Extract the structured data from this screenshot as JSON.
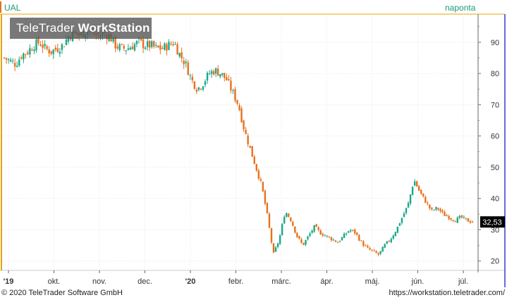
{
  "header": {
    "ticker": "UAL",
    "period": "naponta"
  },
  "watermark": {
    "brand": "TeleTrader ",
    "product": "WorkStation"
  },
  "footer": {
    "copyright": "© 2020 TeleTrader Software GmbH",
    "url": "https://workstation.teletrader.com/"
  },
  "colors": {
    "up": "#1aa888",
    "down": "#e8701e",
    "axis": "#e8a400",
    "grid": "#e6e6e6",
    "text": "#333333"
  },
  "chart_data": {
    "type": "candlestick",
    "title": "",
    "xlabel": "",
    "ylabel": "",
    "ylim": [
      17,
      99
    ],
    "y_ticks": [
      20,
      30,
      40,
      50,
      60,
      70,
      80,
      90
    ],
    "x_tick_labels": [
      "'19",
      "okt.",
      "nov.",
      "dec.",
      "'20",
      "febr.",
      "márc.",
      "ápr.",
      "máj.",
      "jún.",
      "júl."
    ],
    "last_price": "32,53",
    "close_series": {
      "start_label": "2019-09",
      "end_label": "2020-07",
      "values": [
        85,
        84,
        83,
        86,
        87,
        89,
        90,
        88,
        87,
        88,
        89,
        92,
        93,
        92,
        94,
        93,
        92,
        93,
        92,
        89,
        88,
        88,
        89,
        90,
        89,
        89,
        88,
        88,
        89,
        90,
        86,
        83,
        78,
        75,
        77,
        80,
        81,
        80,
        78,
        74,
        70,
        62,
        56,
        50,
        44,
        34,
        22,
        27,
        36,
        33,
        28,
        25,
        28,
        31,
        29,
        28,
        27,
        26,
        28,
        30,
        29,
        26,
        24,
        23,
        22,
        25,
        27,
        30,
        34,
        38,
        46,
        42,
        39,
        36,
        37,
        35,
        34,
        33,
        34,
        33,
        32.5
      ]
    }
  }
}
